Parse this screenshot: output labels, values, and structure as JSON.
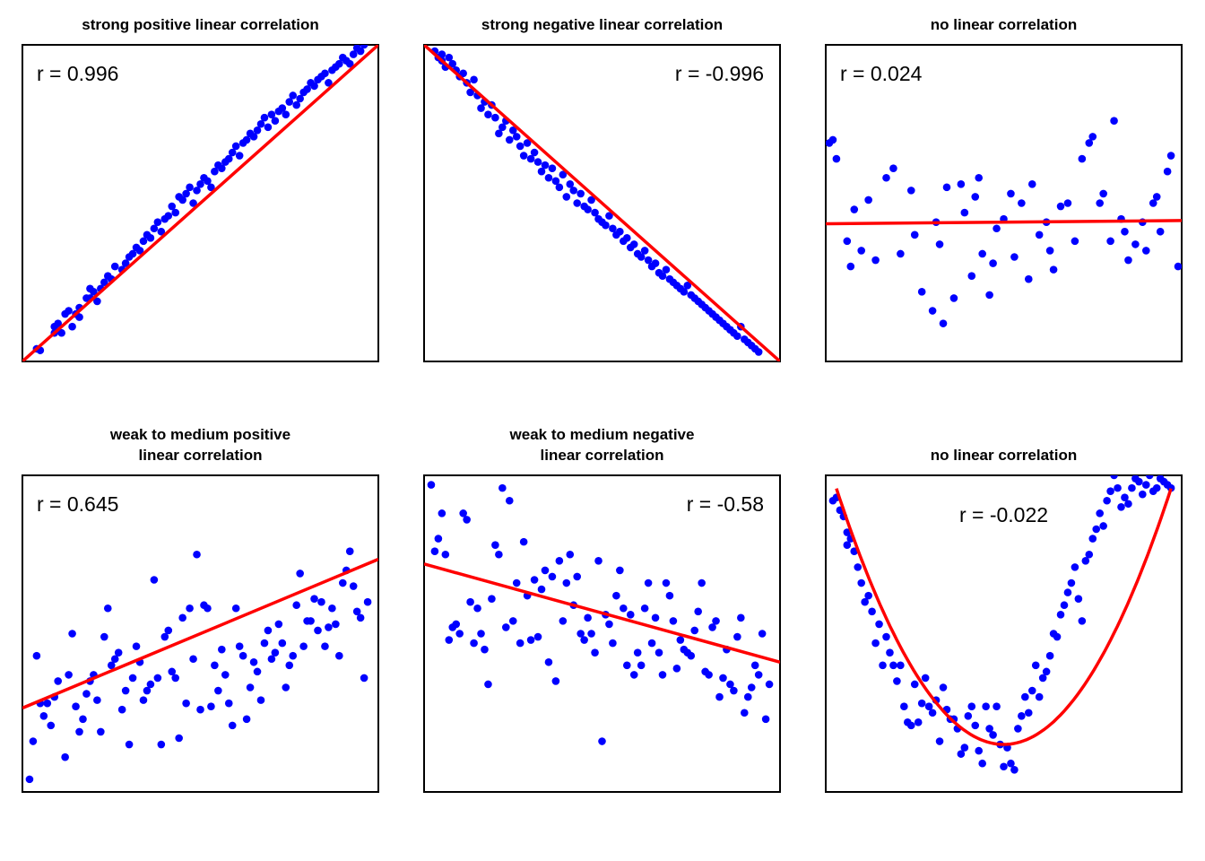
{
  "chart_data": [
    {
      "type": "scatter",
      "title": [
        "strong positive linear correlation"
      ],
      "r_label": "r = 0.996",
      "r_pos": "top-left",
      "xlim": [
        0,
        100
      ],
      "ylim": [
        0,
        100
      ],
      "fit": {
        "kind": "linear",
        "coef": [
          0,
          1
        ]
      },
      "colors": {
        "points": "#0000ff",
        "fit": "#ff0000"
      },
      "x": [
        4,
        5,
        9,
        9,
        10,
        11,
        12,
        13,
        14,
        15,
        16,
        16,
        18,
        19,
        19,
        20,
        21,
        22,
        23,
        24,
        25,
        26,
        28,
        29,
        30,
        31,
        32,
        33,
        34,
        35,
        36,
        37,
        38,
        39,
        40,
        41,
        42,
        43,
        44,
        45,
        46,
        47,
        48,
        49,
        50,
        51,
        52,
        53,
        54,
        55,
        56,
        57,
        58,
        59,
        60,
        61,
        62,
        63,
        64,
        65,
        66,
        67,
        68,
        69,
        70,
        71,
        72,
        73,
        74,
        75,
        76,
        77,
        78,
        79,
        80,
        81,
        82,
        83,
        84,
        85,
        86,
        87,
        88,
        89,
        90,
        91,
        92,
        93,
        94,
        95,
        96
      ],
      "y": [
        4,
        3.5,
        9,
        11,
        12,
        9,
        15,
        16,
        11,
        15,
        17,
        14,
        20,
        23,
        20,
        22,
        19,
        23,
        25,
        27,
        26,
        30,
        29,
        31,
        33,
        34,
        36,
        35,
        38,
        40,
        39,
        42,
        44,
        41,
        45,
        46,
        49,
        47,
        52,
        51,
        53,
        55,
        50,
        54,
        56,
        58,
        57,
        55,
        60,
        62,
        61,
        63,
        64,
        66,
        68,
        65,
        69,
        70,
        72,
        71,
        73,
        75,
        77,
        74,
        78,
        76,
        79,
        80,
        78,
        82,
        84,
        81,
        83,
        85,
        86,
        88,
        87,
        89,
        90,
        91,
        88,
        92,
        93,
        94,
        96,
        95,
        94,
        97,
        99,
        98,
        100
      ]
    },
    {
      "type": "scatter",
      "title": [
        "strong negative linear correlation"
      ],
      "r_label": "r = -0.996",
      "r_pos": "top-right",
      "xlim": [
        0,
        100
      ],
      "ylim": [
        0,
        100
      ],
      "fit": {
        "kind": "linear",
        "coef": [
          100,
          -1
        ]
      },
      "colors": {
        "points": "#0000ff",
        "fit": "#ff0000"
      },
      "x": [
        3,
        4,
        5,
        5,
        6,
        7,
        8,
        9,
        10,
        11,
        12,
        13,
        14,
        15,
        16,
        17,
        18,
        19,
        20,
        21,
        22,
        23,
        24,
        25,
        26,
        27,
        28,
        29,
        30,
        31,
        32,
        33,
        34,
        35,
        36,
        37,
        38,
        39,
        40,
        41,
        42,
        43,
        44,
        45,
        46,
        47,
        48,
        49,
        50,
        51,
        52,
        53,
        54,
        55,
        56,
        57,
        58,
        59,
        60,
        61,
        62,
        63,
        64,
        65,
        66,
        67,
        68,
        69,
        70,
        71,
        72,
        73,
        74,
        75,
        76,
        77,
        78,
        79,
        80,
        81,
        82,
        83,
        84,
        85,
        86,
        87,
        88,
        89,
        90,
        91,
        92,
        93,
        94
      ],
      "y": [
        98,
        96,
        95,
        97,
        93,
        96,
        94,
        92,
        90,
        91,
        88,
        85,
        89,
        84,
        80,
        82,
        78,
        81,
        77,
        72,
        74,
        76,
        70,
        73,
        71,
        68,
        65,
        69,
        64,
        66,
        63,
        60,
        62,
        58,
        61,
        57,
        55,
        59,
        52,
        56,
        54,
        50,
        53,
        49,
        48,
        51,
        47,
        45,
        44,
        43,
        46,
        42,
        40,
        41,
        38,
        39,
        36,
        37,
        34,
        33,
        35,
        32,
        30,
        31,
        28,
        27,
        29,
        26,
        25,
        24,
        23,
        22,
        24,
        21,
        20,
        19,
        18,
        17,
        16,
        15,
        14,
        13,
        12,
        11,
        10,
        9,
        8,
        11,
        7,
        6,
        5,
        4,
        3
      ]
    },
    {
      "type": "scatter",
      "title": [
        "no linear correlation"
      ],
      "r_label": "r = 0.024",
      "r_pos": "top-left",
      "xlim": [
        0,
        100
      ],
      "ylim": [
        0,
        100
      ],
      "fit": {
        "kind": "linear",
        "coef": [
          43.5,
          0.01
        ]
      },
      "colors": {
        "points": "#0000ff",
        "fit": "#ff0000"
      },
      "x": [
        1,
        2,
        3,
        6,
        7,
        8,
        10,
        12,
        14,
        17,
        19,
        21,
        24,
        25,
        27,
        30,
        31,
        32,
        33,
        34,
        36,
        38,
        39,
        41,
        42,
        43,
        44,
        46,
        47,
        48,
        50,
        52,
        53,
        55,
        57,
        58,
        60,
        62,
        63,
        64,
        66,
        68,
        70,
        72,
        74,
        75,
        77,
        78,
        80,
        81,
        83,
        84,
        85,
        87,
        89,
        90,
        92,
        93,
        94,
        96,
        97,
        99
      ],
      "y": [
        69,
        70,
        64,
        38,
        30,
        48,
        35,
        51,
        32,
        58,
        61,
        34,
        54,
        40,
        22,
        16,
        44,
        37,
        12,
        55,
        20,
        56,
        47,
        27,
        52,
        58,
        34,
        21,
        31,
        42,
        45,
        53,
        33,
        50,
        26,
        56,
        40,
        44,
        35,
        29,
        49,
        50,
        38,
        64,
        69,
        71,
        50,
        53,
        38,
        76,
        45,
        41,
        32,
        37,
        44,
        35,
        50,
        52,
        41,
        60,
        65,
        30
      ]
    },
    {
      "type": "scatter",
      "title": [
        "weak to medium positive",
        "linear correlation"
      ],
      "r_label": "r = 0.645",
      "r_pos": "top-left",
      "xlim": [
        0,
        100
      ],
      "ylim": [
        0,
        100
      ],
      "fit": {
        "kind": "linear",
        "coef": [
          26.5,
          0.47
        ]
      },
      "colors": {
        "points": "#0000ff",
        "fit": "#ff0000"
      },
      "x": [
        2,
        3,
        4,
        5,
        6,
        7,
        8,
        9,
        10,
        12,
        13,
        14,
        15,
        16,
        17,
        18,
        19,
        20,
        21,
        22,
        23,
        24,
        25,
        26,
        27,
        28,
        29,
        30,
        31,
        32,
        33,
        34,
        35,
        36,
        37,
        38,
        39,
        40,
        41,
        42,
        43,
        44,
        45,
        46,
        47,
        48,
        49,
        50,
        51,
        52,
        53,
        54,
        55,
        56,
        57,
        58,
        59,
        60,
        61,
        62,
        63,
        64,
        65,
        66,
        67,
        68,
        69,
        70,
        71,
        72,
        73,
        74,
        75,
        76,
        77,
        78,
        79,
        80,
        81,
        82,
        83,
        84,
        85,
        86,
        87,
        88,
        89,
        90,
        91,
        92,
        93,
        94,
        95,
        96,
        97
      ],
      "y": [
        4,
        16,
        43,
        28,
        24,
        28,
        21,
        30,
        35,
        11,
        37,
        50,
        27,
        19,
        23,
        31,
        35,
        37,
        29,
        19,
        49,
        58,
        40,
        42,
        44,
        26,
        32,
        15,
        36,
        46,
        41,
        29,
        32,
        34,
        67,
        36,
        15,
        49,
        51,
        38,
        36,
        17,
        55,
        28,
        58,
        42,
        75,
        26,
        59,
        58,
        27,
        40,
        32,
        45,
        37,
        28,
        21,
        58,
        46,
        43,
        23,
        33,
        41,
        38,
        29,
        47,
        51,
        42,
        44,
        53,
        47,
        33,
        40,
        43,
        59,
        69,
        46,
        54,
        54,
        61,
        51,
        60,
        46,
        52,
        58,
        53,
        43,
        66,
        70,
        76,
        65,
        57,
        55,
        36,
        60
      ]
    },
    {
      "type": "scatter",
      "title": [
        "weak to medium negative",
        "linear correlation"
      ],
      "r_label": "r = -0.58",
      "r_pos": "top-right",
      "xlim": [
        0,
        100
      ],
      "ylim": [
        0,
        100
      ],
      "fit": {
        "kind": "linear",
        "coef": [
          72,
          -0.31
        ]
      },
      "colors": {
        "points": "#0000ff",
        "fit": "#ff0000"
      },
      "x": [
        2,
        3,
        4,
        5,
        6,
        7,
        8,
        9,
        10,
        11,
        12,
        13,
        14,
        15,
        16,
        17,
        18,
        19,
        20,
        21,
        22,
        23,
        24,
        25,
        26,
        27,
        28,
        29,
        30,
        31,
        32,
        33,
        34,
        35,
        36,
        37,
        38,
        39,
        40,
        41,
        42,
        43,
        44,
        45,
        46,
        47,
        48,
        49,
        50,
        51,
        52,
        53,
        54,
        55,
        56,
        57,
        58,
        59,
        60,
        61,
        62,
        63,
        64,
        65,
        66,
        67,
        68,
        69,
        70,
        71,
        72,
        73,
        74,
        75,
        76,
        77,
        78,
        79,
        80,
        81,
        82,
        83,
        84,
        85,
        86,
        87,
        88,
        89,
        90,
        91,
        92,
        93,
        94,
        95,
        96,
        97
      ],
      "y": [
        97,
        76,
        80,
        88,
        75,
        48,
        52,
        53,
        50,
        88,
        86,
        60,
        47,
        58,
        50,
        45,
        34,
        61,
        78,
        75,
        96,
        52,
        92,
        54,
        66,
        47,
        79,
        62,
        48,
        67,
        49,
        64,
        70,
        41,
        68,
        35,
        73,
        54,
        66,
        75,
        59,
        68,
        50,
        48,
        55,
        50,
        44,
        73,
        16,
        56,
        53,
        47,
        62,
        70,
        58,
        40,
        56,
        37,
        44,
        40,
        58,
        66,
        47,
        55,
        44,
        37,
        66,
        62,
        54,
        39,
        48,
        45,
        44,
        43,
        51,
        57,
        66,
        38,
        37,
        52,
        54,
        30,
        36,
        45,
        34,
        32,
        49,
        55,
        25,
        30,
        33,
        40,
        37,
        50,
        23,
        34
      ]
    },
    {
      "type": "scatter",
      "title": [
        "no linear correlation"
      ],
      "r_label": "r = -0.022",
      "r_pos": "top-center",
      "xlim": [
        0,
        100
      ],
      "ylim": [
        0,
        100
      ],
      "fit": {
        "kind": "quadratic",
        "coef": [
          15,
          0,
          0.0366
        ],
        "center": 50
      },
      "colors": {
        "points": "#0000ff",
        "fit": "#ff0000"
      },
      "x": [
        2,
        3,
        4,
        5,
        6,
        6,
        7,
        8,
        9,
        10,
        11,
        12,
        13,
        14,
        15,
        16,
        17,
        18,
        19,
        20,
        21,
        22,
        23,
        24,
        25,
        26,
        27,
        28,
        29,
        30,
        31,
        32,
        33,
        34,
        35,
        36,
        37,
        38,
        39,
        40,
        41,
        42,
        43,
        44,
        45,
        46,
        47,
        48,
        49,
        50,
        51,
        52,
        53,
        54,
        55,
        56,
        57,
        58,
        59,
        60,
        61,
        62,
        63,
        64,
        65,
        66,
        67,
        68,
        69,
        70,
        71,
        72,
        73,
        74,
        75,
        76,
        77,
        78,
        79,
        80,
        81,
        82,
        83,
        84,
        85,
        86,
        87,
        88,
        89,
        90,
        91,
        92,
        93,
        94,
        95,
        96,
        97
      ],
      "y": [
        92,
        93,
        89,
        87,
        82,
        78,
        80,
        76,
        71,
        66,
        60,
        62,
        57,
        47,
        53,
        40,
        49,
        44,
        40,
        35,
        40,
        27,
        22,
        21,
        34,
        22,
        28,
        36,
        27,
        25,
        29,
        16,
        33,
        26,
        23,
        23,
        20,
        12,
        14,
        24,
        27,
        21,
        13,
        9,
        27,
        20,
        18,
        27,
        15,
        8,
        14,
        9,
        7,
        20,
        24,
        30,
        25,
        32,
        40,
        30,
        36,
        38,
        43,
        50,
        49,
        56,
        59,
        63,
        66,
        71,
        61,
        54,
        73,
        75,
        80,
        83,
        88,
        84,
        92,
        95,
        100,
        96,
        90,
        93,
        91,
        96,
        99,
        98,
        94,
        97,
        100,
        95,
        96,
        99,
        98,
        97,
        96
      ]
    }
  ]
}
